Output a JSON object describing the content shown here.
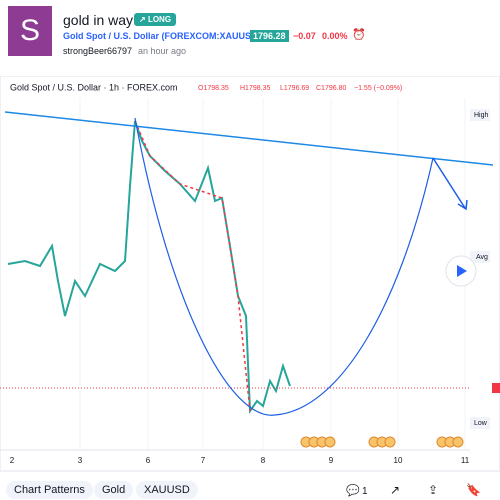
{
  "header": {
    "avatar_letter": "S",
    "title": "gold in way",
    "badge": "LONG",
    "symbol": "Gold Spot / U.S. Dollar (FOREXCOM:XAUUSD)",
    "price": "1796.28",
    "change": "−0.07",
    "change_pct": "0.00%",
    "author": "strongBeer66797",
    "time": "an hour ago"
  },
  "chart": {
    "legend_title": "Gold Spot / U.S. Dollar · 1h · FOREX.com",
    "ohlc": [
      "O1798.35",
      "H1798.35",
      "L1796.69",
      "C1796.80",
      "−1.55 (−0.09%)"
    ],
    "price_labels": [
      "High",
      "Avg",
      "Low"
    ],
    "x_labels": [
      "2",
      "3",
      "6",
      "7",
      "8",
      "9",
      "10",
      "11"
    ]
  },
  "tags": [
    "Chart Patterns",
    "Gold",
    "XAUUSD"
  ],
  "footer": {
    "comments": "1"
  }
}
